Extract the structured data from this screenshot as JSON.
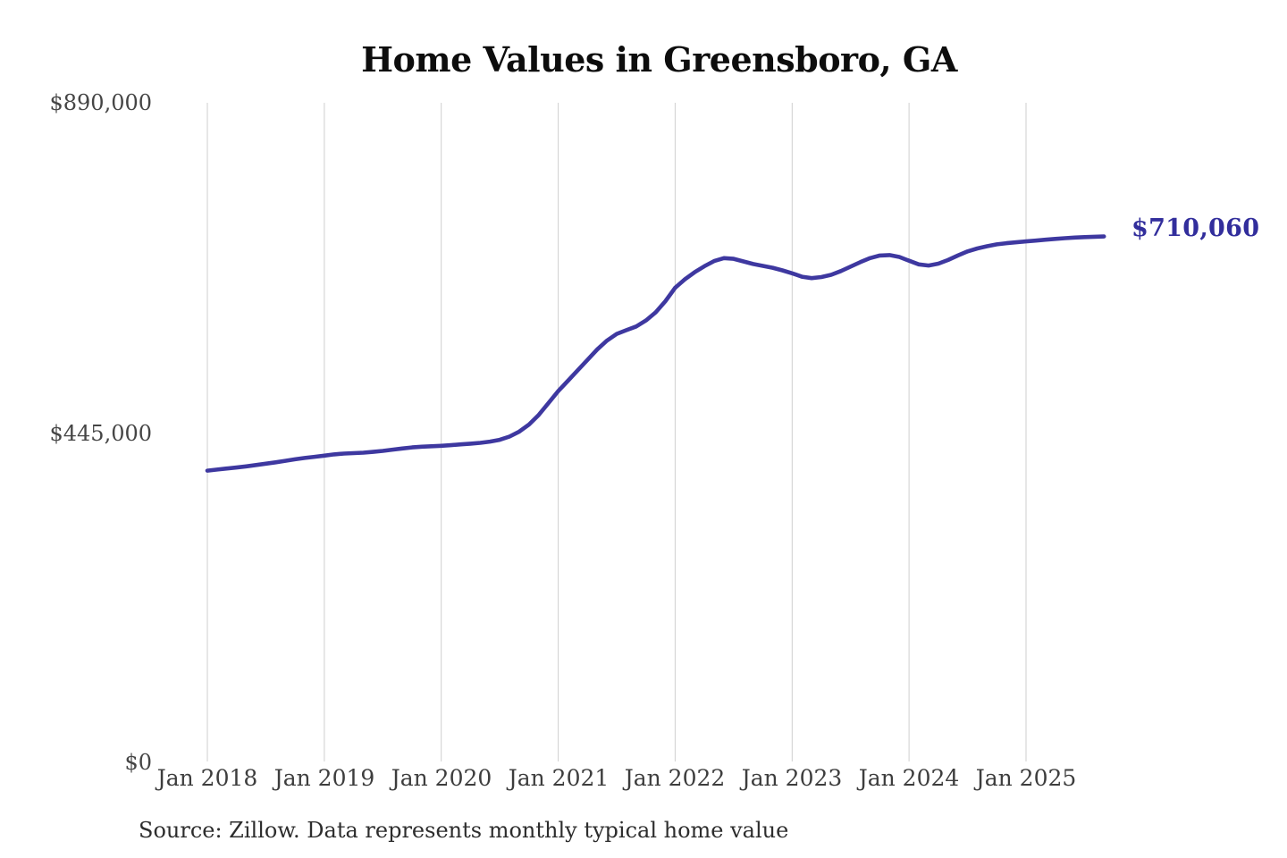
{
  "page": {
    "background": "#ffffff"
  },
  "chart_data": {
    "type": "line",
    "title": "Home Values in Greensboro, GA",
    "source_note": "Source: Zillow. Data represents monthly typical home value",
    "series_name": "Monthly typical home value",
    "unit": "USD",
    "frequency": "monthly",
    "x_start": "Jan 2018",
    "x_end": "Sep 2025",
    "x_tick_labels": [
      "Jan 2018",
      "Jan 2019",
      "Jan 2020",
      "Jan 2021",
      "Jan 2022",
      "Jan 2023",
      "Jan 2024",
      "Jan 2025"
    ],
    "y_ticks": [
      {
        "label": "$890,000",
        "value": 890000
      },
      {
        "label": "$445,000",
        "value": 445000
      },
      {
        "label": "$0",
        "value": 0
      }
    ],
    "ylim": [
      0,
      890000
    ],
    "grid": "vertical-only",
    "legend": "none",
    "end_label": "$710,060",
    "end_value": 710060,
    "values": [
      395000,
      396400,
      397800,
      399200,
      400800,
      402500,
      404300,
      406200,
      408200,
      410200,
      412000,
      413600,
      415200,
      416800,
      417900,
      418600,
      419200,
      420200,
      421600,
      423200,
      424800,
      426200,
      427200,
      427800,
      428400,
      429300,
      430300,
      431300,
      432400,
      434000,
      436500,
      440800,
      447500,
      457000,
      470000,
      486000,
      502000,
      516000,
      530000,
      544000,
      558000,
      570000,
      579000,
      584000,
      589000,
      597000,
      608000,
      623000,
      641000,
      652500,
      662000,
      670000,
      677000,
      681000,
      680000,
      676500,
      673000,
      670500,
      668000,
      664500,
      660500,
      656000,
      654000,
      655500,
      658500,
      663500,
      669500,
      675500,
      681000,
      684500,
      685000,
      682500,
      677500,
      672500,
      671000,
      673500,
      678500,
      684500,
      690000,
      694000,
      697000,
      699500,
      701000,
      702200,
      703500,
      704600,
      705700,
      706800,
      707800,
      708600,
      709200,
      709700,
      710060
    ],
    "colors": {
      "line": "#3e38a0",
      "end_label": "#322e9c",
      "grid": "#cfcfcf",
      "axis_text": "#454545",
      "title": "#0d0d0d",
      "source_text": "#2d2d2d"
    }
  }
}
